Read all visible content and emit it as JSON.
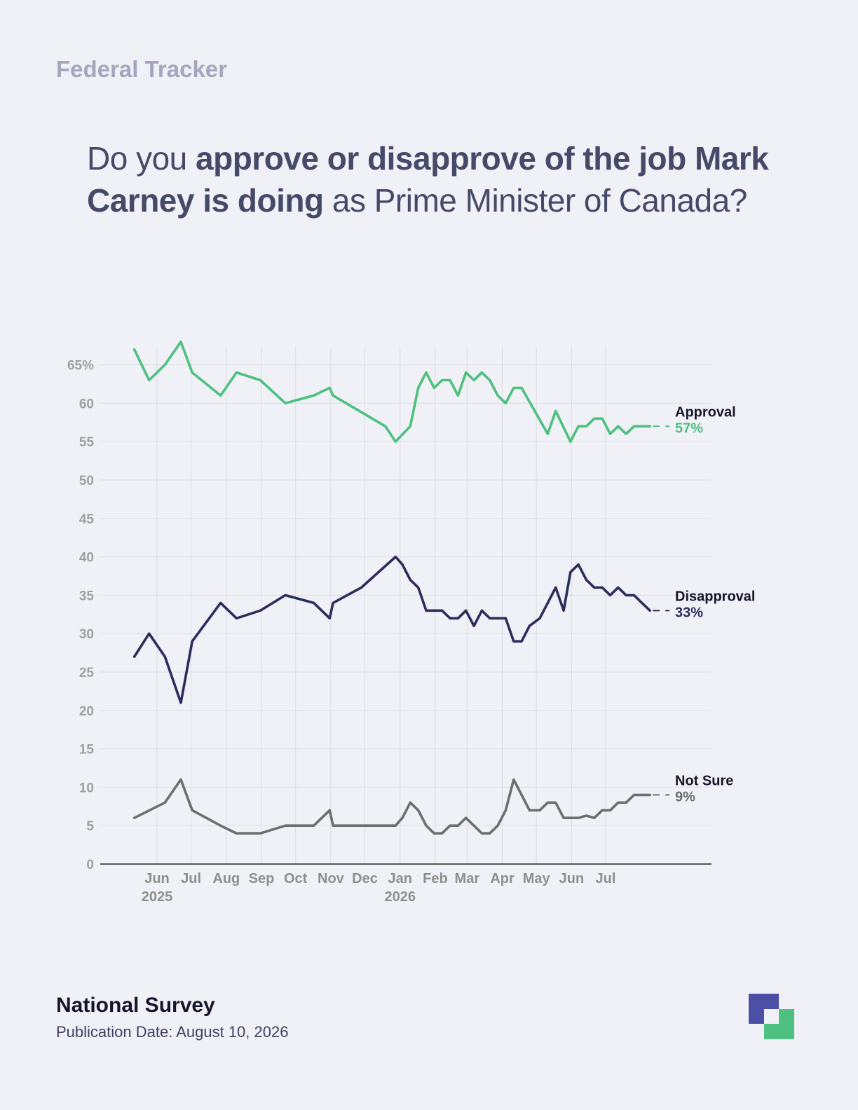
{
  "header": {
    "kicker": "Federal Tracker",
    "question_parts": [
      {
        "text": "Do you ",
        "weight": "light"
      },
      {
        "text": "approve or disapprove of the job Mark Carney is doing",
        "weight": "strong"
      },
      {
        "text": " as Prime Minister of Canada?",
        "weight": "light"
      }
    ]
  },
  "footer": {
    "title": "National Survey",
    "date": "Publication Date: August 10, 2026"
  },
  "logo": {
    "colors": [
      "#4b4fa6",
      "#4ec07f"
    ]
  },
  "chart_data": {
    "type": "line",
    "title": "",
    "xlabel": "",
    "ylabel": "",
    "ylim": [
      0,
      67
    ],
    "y_ticks": [
      {
        "value": 65,
        "label": "65%"
      },
      {
        "value": 60,
        "label": "60"
      },
      {
        "value": 55,
        "label": "55"
      },
      {
        "value": 50,
        "label": "50"
      },
      {
        "value": 45,
        "label": "45"
      },
      {
        "value": 40,
        "label": "40"
      },
      {
        "value": 35,
        "label": "35"
      },
      {
        "value": 30,
        "label": "30"
      },
      {
        "value": 25,
        "label": "25"
      },
      {
        "value": 20,
        "label": "20"
      },
      {
        "value": 15,
        "label": "15"
      },
      {
        "value": 10,
        "label": "10"
      },
      {
        "value": 5,
        "label": "5"
      },
      {
        "value": 0,
        "label": "0"
      }
    ],
    "xlim": [
      "2025-05-14",
      "2026-08-25"
    ],
    "x_ticks": [
      {
        "date": "2025-06-01",
        "label": "Jun",
        "year": "2025"
      },
      {
        "date": "2025-07-01",
        "label": "Jul"
      },
      {
        "date": "2025-08-01",
        "label": "Aug"
      },
      {
        "date": "2025-09-01",
        "label": "Sep"
      },
      {
        "date": "2025-10-01",
        "label": "Oct"
      },
      {
        "date": "2025-11-01",
        "label": "Nov"
      },
      {
        "date": "2025-12-01",
        "label": "Dec"
      },
      {
        "date": "2026-01-01",
        "label": "Jan",
        "year": "2026"
      },
      {
        "date": "2026-02-01",
        "label": "Feb"
      },
      {
        "date": "2026-03-01",
        "label": "Mar"
      },
      {
        "date": "2026-04-01",
        "label": "Apr"
      },
      {
        "date": "2026-05-01",
        "label": "May"
      },
      {
        "date": "2026-06-01",
        "label": "Jun"
      },
      {
        "date": "2026-07-01",
        "label": "Jul"
      }
    ],
    "grid": true,
    "series": [
      {
        "name": "Approval",
        "end_label": "57%",
        "color": "#4ec07f",
        "points": [
          [
            "2025-05-12",
            67
          ],
          [
            "2025-05-25",
            63
          ],
          [
            "2025-06-08",
            65
          ],
          [
            "2025-06-22",
            68
          ],
          [
            "2025-07-02",
            64
          ],
          [
            "2025-07-27",
            61
          ],
          [
            "2025-08-10",
            64
          ],
          [
            "2025-08-31",
            63
          ],
          [
            "2025-09-22",
            60
          ],
          [
            "2025-10-17",
            61
          ],
          [
            "2025-10-31",
            62
          ],
          [
            "2025-11-03",
            61
          ],
          [
            "2025-12-19",
            57
          ],
          [
            "2025-12-28",
            55
          ],
          [
            "2026-01-10",
            57
          ],
          [
            "2026-01-17",
            62
          ],
          [
            "2026-01-24",
            64
          ],
          [
            "2026-01-31",
            62
          ],
          [
            "2026-02-07",
            63
          ],
          [
            "2026-02-14",
            63
          ],
          [
            "2026-02-21",
            61
          ],
          [
            "2026-02-28",
            64
          ],
          [
            "2026-03-07",
            63
          ],
          [
            "2026-03-14",
            64
          ],
          [
            "2026-03-21",
            63
          ],
          [
            "2026-03-28",
            61
          ],
          [
            "2026-04-04",
            60
          ],
          [
            "2026-04-11",
            62
          ],
          [
            "2026-04-18",
            62
          ],
          [
            "2026-05-11",
            56
          ],
          [
            "2026-05-18",
            59
          ],
          [
            "2026-05-31",
            55
          ],
          [
            "2026-06-07",
            57
          ],
          [
            "2026-06-14",
            57
          ],
          [
            "2026-06-21",
            58
          ],
          [
            "2026-06-28",
            58
          ],
          [
            "2026-07-05",
            56
          ],
          [
            "2026-07-12",
            57
          ],
          [
            "2026-07-19",
            56
          ],
          [
            "2026-07-26",
            57
          ],
          [
            "2026-08-02",
            57
          ],
          [
            "2026-08-09",
            57
          ]
        ]
      },
      {
        "name": "Disapproval",
        "end_label": "33%",
        "color": "#2b2e5c",
        "points": [
          [
            "2025-05-12",
            27
          ],
          [
            "2025-05-25",
            30
          ],
          [
            "2025-06-08",
            27
          ],
          [
            "2025-06-22",
            21
          ],
          [
            "2025-07-02",
            29
          ],
          [
            "2025-07-27",
            34
          ],
          [
            "2025-08-10",
            32
          ],
          [
            "2025-08-31",
            33
          ],
          [
            "2025-09-22",
            35
          ],
          [
            "2025-10-17",
            34
          ],
          [
            "2025-10-31",
            32
          ],
          [
            "2025-11-03",
            34
          ],
          [
            "2025-11-28",
            36
          ],
          [
            "2025-12-28",
            40
          ],
          [
            "2026-01-03",
            39
          ],
          [
            "2026-01-10",
            37
          ],
          [
            "2026-01-17",
            36
          ],
          [
            "2026-01-24",
            33
          ],
          [
            "2026-02-07",
            33
          ],
          [
            "2026-02-14",
            32
          ],
          [
            "2026-02-21",
            32
          ],
          [
            "2026-02-28",
            33
          ],
          [
            "2026-03-07",
            31
          ],
          [
            "2026-03-14",
            33
          ],
          [
            "2026-03-21",
            32
          ],
          [
            "2026-03-28",
            32
          ],
          [
            "2026-04-04",
            32
          ],
          [
            "2026-04-11",
            29
          ],
          [
            "2026-04-18",
            29
          ],
          [
            "2026-04-25",
            31
          ],
          [
            "2026-05-04",
            32
          ],
          [
            "2026-05-11",
            34
          ],
          [
            "2026-05-18",
            36
          ],
          [
            "2026-05-25",
            33
          ],
          [
            "2026-05-31",
            38
          ],
          [
            "2026-06-07",
            39
          ],
          [
            "2026-06-14",
            37
          ],
          [
            "2026-06-21",
            36
          ],
          [
            "2026-06-28",
            36
          ],
          [
            "2026-07-05",
            35
          ],
          [
            "2026-07-12",
            36
          ],
          [
            "2026-07-19",
            35
          ],
          [
            "2026-07-26",
            35
          ],
          [
            "2026-08-02",
            34
          ],
          [
            "2026-08-09",
            33
          ]
        ]
      },
      {
        "name": "Not Sure",
        "end_label": "9%",
        "color": "#6e6e6e",
        "points": [
          [
            "2025-05-12",
            6
          ],
          [
            "2025-06-08",
            8
          ],
          [
            "2025-06-22",
            11
          ],
          [
            "2025-07-02",
            7
          ],
          [
            "2025-07-27",
            5
          ],
          [
            "2025-08-10",
            4
          ],
          [
            "2025-08-31",
            4
          ],
          [
            "2025-09-22",
            5
          ],
          [
            "2025-10-17",
            5
          ],
          [
            "2025-10-31",
            7
          ],
          [
            "2025-11-03",
            5
          ],
          [
            "2025-12-28",
            5
          ],
          [
            "2026-01-03",
            6
          ],
          [
            "2026-01-10",
            8
          ],
          [
            "2026-01-17",
            7
          ],
          [
            "2026-01-24",
            5
          ],
          [
            "2026-01-31",
            4
          ],
          [
            "2026-02-07",
            4
          ],
          [
            "2026-02-14",
            5
          ],
          [
            "2026-02-21",
            5
          ],
          [
            "2026-02-28",
            6
          ],
          [
            "2026-03-07",
            5
          ],
          [
            "2026-03-14",
            4
          ],
          [
            "2026-03-21",
            4
          ],
          [
            "2026-03-28",
            5
          ],
          [
            "2026-04-04",
            7
          ],
          [
            "2026-04-11",
            11
          ],
          [
            "2026-04-25",
            7
          ],
          [
            "2026-05-04",
            7
          ],
          [
            "2026-05-11",
            8
          ],
          [
            "2026-05-18",
            8
          ],
          [
            "2026-05-25",
            6
          ],
          [
            "2026-06-07",
            6
          ],
          [
            "2026-06-14",
            6.3
          ],
          [
            "2026-06-21",
            6
          ],
          [
            "2026-06-28",
            7
          ],
          [
            "2026-07-05",
            7
          ],
          [
            "2026-07-12",
            8
          ],
          [
            "2026-07-19",
            8
          ],
          [
            "2026-07-26",
            9
          ],
          [
            "2026-08-02",
            9
          ],
          [
            "2026-08-09",
            9
          ]
        ]
      }
    ]
  }
}
